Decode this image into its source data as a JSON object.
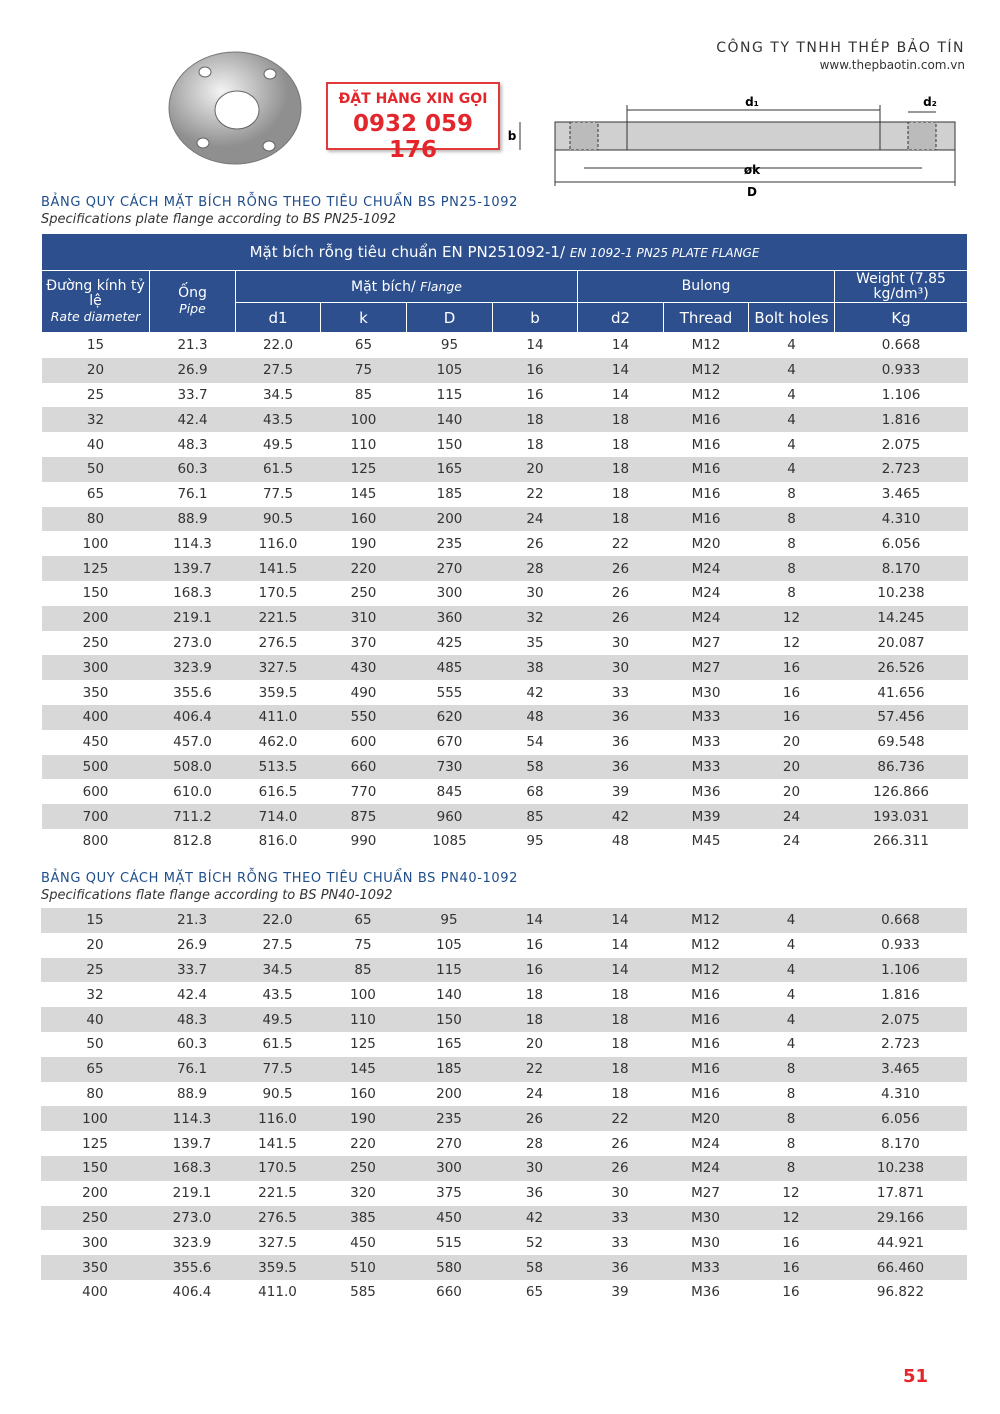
{
  "header": {
    "company": "CÔNG TY TNHH THÉP BẢO TÍN",
    "website": "www.thepbaotin.com.vn"
  },
  "promo": {
    "line1": "ĐẶT HÀNG XIN GỌI",
    "phone": "0932 059 176"
  },
  "diagram": {
    "d1": "d₁",
    "d2": "d₂",
    "b": "b",
    "k": "øk",
    "D": "D"
  },
  "section1": {
    "title": "BẢNG QUY CÁCH MẶT BÍCH RỖNG THEO TIÊU CHUẨN BS PN25-1092",
    "subtitle": "Specifications plate flange according to BS PN25-1092"
  },
  "table": {
    "caption": "Mặt bích rỗng tiêu chuẩn EN PN251092-1/",
    "caption_en": "EN 1092-1 PN25 PLATE FLANGE",
    "head": {
      "rate": "Đường kính tỷ lệ",
      "rate_en": "Rate diameter",
      "pipe": "Ống",
      "pipe_en": "Pipe",
      "flange": "Mặt bích/",
      "flange_en": "Flange",
      "bulong": "Bulong",
      "weight": "Weight (7.85 kg/dm³)"
    },
    "subhead": [
      "d1",
      "k",
      "D",
      "b",
      "d2",
      "Thread",
      "Bolt holes",
      "Kg"
    ],
    "rows": [
      [
        "15",
        "21.3",
        "22.0",
        "65",
        "95",
        "14",
        "14",
        "M12",
        "4",
        "0.668"
      ],
      [
        "20",
        "26.9",
        "27.5",
        "75",
        "105",
        "16",
        "14",
        "M12",
        "4",
        "0.933"
      ],
      [
        "25",
        "33.7",
        "34.5",
        "85",
        "115",
        "16",
        "14",
        "M12",
        "4",
        "1.106"
      ],
      [
        "32",
        "42.4",
        "43.5",
        "100",
        "140",
        "18",
        "18",
        "M16",
        "4",
        "1.816"
      ],
      [
        "40",
        "48.3",
        "49.5",
        "110",
        "150",
        "18",
        "18",
        "M16",
        "4",
        "2.075"
      ],
      [
        "50",
        "60.3",
        "61.5",
        "125",
        "165",
        "20",
        "18",
        "M16",
        "4",
        "2.723"
      ],
      [
        "65",
        "76.1",
        "77.5",
        "145",
        "185",
        "22",
        "18",
        "M16",
        "8",
        "3.465"
      ],
      [
        "80",
        "88.9",
        "90.5",
        "160",
        "200",
        "24",
        "18",
        "M16",
        "8",
        "4.310"
      ],
      [
        "100",
        "114.3",
        "116.0",
        "190",
        "235",
        "26",
        "22",
        "M20",
        "8",
        "6.056"
      ],
      [
        "125",
        "139.7",
        "141.5",
        "220",
        "270",
        "28",
        "26",
        "M24",
        "8",
        "8.170"
      ],
      [
        "150",
        "168.3",
        "170.5",
        "250",
        "300",
        "30",
        "26",
        "M24",
        "8",
        "10.238"
      ],
      [
        "200",
        "219.1",
        "221.5",
        "310",
        "360",
        "32",
        "26",
        "M24",
        "12",
        "14.245"
      ],
      [
        "250",
        "273.0",
        "276.5",
        "370",
        "425",
        "35",
        "30",
        "M27",
        "12",
        "20.087"
      ],
      [
        "300",
        "323.9",
        "327.5",
        "430",
        "485",
        "38",
        "30",
        "M27",
        "16",
        "26.526"
      ],
      [
        "350",
        "355.6",
        "359.5",
        "490",
        "555",
        "42",
        "33",
        "M30",
        "16",
        "41.656"
      ],
      [
        "400",
        "406.4",
        "411.0",
        "550",
        "620",
        "48",
        "36",
        "M33",
        "16",
        "57.456"
      ],
      [
        "450",
        "457.0",
        "462.0",
        "600",
        "670",
        "54",
        "36",
        "M33",
        "20",
        "69.548"
      ],
      [
        "500",
        "508.0",
        "513.5",
        "660",
        "730",
        "58",
        "36",
        "M33",
        "20",
        "86.736"
      ],
      [
        "600",
        "610.0",
        "616.5",
        "770",
        "845",
        "68",
        "39",
        "M36",
        "20",
        "126.866"
      ],
      [
        "700",
        "711.2",
        "714.0",
        "875",
        "960",
        "85",
        "42",
        "M39",
        "24",
        "193.031"
      ],
      [
        "800",
        "812.8",
        "816.0",
        "990",
        "1085",
        "95",
        "48",
        "M45",
        "24",
        "266.311"
      ]
    ]
  },
  "section2": {
    "title": "BẢNG QUY CÁCH MẶT BÍCH RỖNG THEO TIÊU CHUẨN BS PN40-1092",
    "subtitle": "Specifications flate flange according to BS PN40-1092"
  },
  "table2": {
    "rows": [
      [
        "15",
        "21.3",
        "22.0",
        "65",
        "95",
        "14",
        "14",
        "M12",
        "4",
        "0.668"
      ],
      [
        "20",
        "26.9",
        "27.5",
        "75",
        "105",
        "16",
        "14",
        "M12",
        "4",
        "0.933"
      ],
      [
        "25",
        "33.7",
        "34.5",
        "85",
        "115",
        "16",
        "14",
        "M12",
        "4",
        "1.106"
      ],
      [
        "32",
        "42.4",
        "43.5",
        "100",
        "140",
        "18",
        "18",
        "M16",
        "4",
        "1.816"
      ],
      [
        "40",
        "48.3",
        "49.5",
        "110",
        "150",
        "18",
        "18",
        "M16",
        "4",
        "2.075"
      ],
      [
        "50",
        "60.3",
        "61.5",
        "125",
        "165",
        "20",
        "18",
        "M16",
        "4",
        "2.723"
      ],
      [
        "65",
        "76.1",
        "77.5",
        "145",
        "185",
        "22",
        "18",
        "M16",
        "8",
        "3.465"
      ],
      [
        "80",
        "88.9",
        "90.5",
        "160",
        "200",
        "24",
        "18",
        "M16",
        "8",
        "4.310"
      ],
      [
        "100",
        "114.3",
        "116.0",
        "190",
        "235",
        "26",
        "22",
        "M20",
        "8",
        "6.056"
      ],
      [
        "125",
        "139.7",
        "141.5",
        "220",
        "270",
        "28",
        "26",
        "M24",
        "8",
        "8.170"
      ],
      [
        "150",
        "168.3",
        "170.5",
        "250",
        "300",
        "30",
        "26",
        "M24",
        "8",
        "10.238"
      ],
      [
        "200",
        "219.1",
        "221.5",
        "320",
        "375",
        "36",
        "30",
        "M27",
        "12",
        "17.871"
      ],
      [
        "250",
        "273.0",
        "276.5",
        "385",
        "450",
        "42",
        "33",
        "M30",
        "12",
        "29.166"
      ],
      [
        "300",
        "323.9",
        "327.5",
        "450",
        "515",
        "52",
        "33",
        "M30",
        "16",
        "44.921"
      ],
      [
        "350",
        "355.6",
        "359.5",
        "510",
        "580",
        "58",
        "36",
        "M33",
        "16",
        "66.460"
      ],
      [
        "400",
        "406.4",
        "411.0",
        "585",
        "660",
        "65",
        "39",
        "M36",
        "16",
        "96.822"
      ]
    ]
  },
  "page_number": "51"
}
